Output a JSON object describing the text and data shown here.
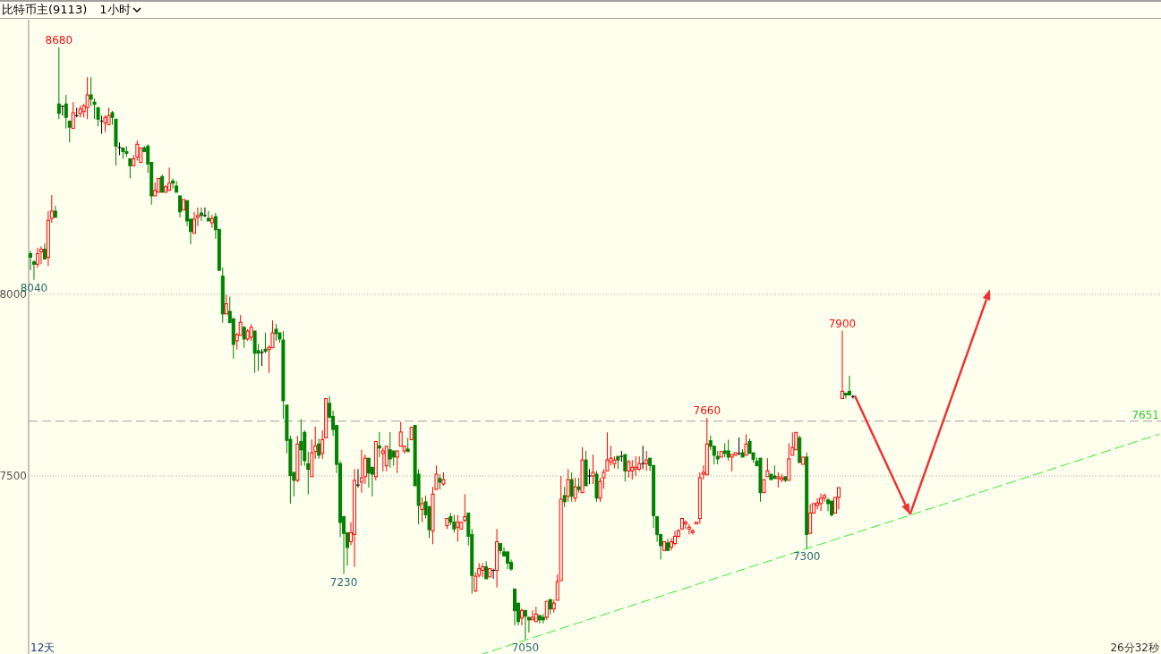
{
  "chart_data": {
    "type": "candlestick",
    "title": "比特币主(9113)",
    "subtitle": "1小时",
    "categories": [
      null,
      null,
      null,
      null,
      null,
      null,
      null,
      null,
      null,
      null,
      null,
      null,
      null,
      null,
      null,
      null,
      null,
      null,
      null,
      null,
      null,
      null,
      null,
      null,
      null,
      null,
      null,
      null,
      null,
      null,
      null,
      null,
      null,
      null,
      null,
      null,
      null,
      null,
      null,
      null,
      null,
      null,
      null,
      null,
      null,
      null,
      null,
      null,
      null,
      null,
      null,
      null,
      null,
      null,
      null,
      null,
      null,
      null,
      null,
      null,
      null,
      null,
      null,
      null,
      null,
      null,
      null,
      null,
      null,
      null,
      null,
      null,
      null,
      null,
      null,
      null,
      null,
      null,
      null,
      null,
      null,
      null,
      null,
      null,
      null,
      null,
      null,
      null,
      null,
      null,
      null,
      null,
      null,
      null,
      null,
      null,
      null,
      null,
      null,
      null,
      null,
      null,
      null,
      null,
      null,
      null,
      null,
      null,
      null,
      null,
      null,
      null,
      null,
      null,
      null,
      null,
      null,
      null,
      null,
      null,
      null,
      null,
      null,
      null,
      null,
      null,
      null,
      null,
      null,
      null,
      null,
      null,
      null,
      null,
      null,
      null,
      null,
      null,
      null,
      null,
      null,
      null,
      null,
      null,
      null,
      null,
      null,
      null,
      null,
      null,
      null,
      null,
      null,
      null,
      null,
      null,
      null,
      null,
      null,
      null,
      null,
      null,
      null,
      null,
      null,
      null,
      null,
      null,
      null,
      null,
      null,
      null,
      null,
      null,
      null,
      null,
      null,
      null,
      null,
      null,
      null,
      null,
      null,
      null,
      null,
      null,
      null,
      null,
      null,
      null,
      null,
      null,
      null,
      null,
      null,
      null,
      null,
      null,
      null,
      null,
      null,
      null,
      null,
      null,
      null,
      null,
      null,
      null,
      null,
      null,
      null,
      null,
      null,
      null,
      null,
      null,
      null,
      null,
      null,
      null,
      null,
      null,
      null,
      null,
      null,
      null,
      null,
      null,
      null,
      null,
      null,
      null,
      null,
      null,
      null,
      null,
      null,
      null,
      null,
      null,
      null,
      null,
      null,
      null,
      null,
      null,
      null,
      null,
      null,
      null,
      null,
      null,
      null,
      null,
      null,
      null,
      null,
      null,
      null,
      null,
      null,
      null,
      null,
      null,
      null,
      null,
      null,
      null,
      null,
      null,
      null,
      null,
      null,
      null,
      null,
      null,
      null,
      null,
      null,
      null,
      null,
      null,
      null,
      null,
      null,
      null,
      null,
      null,
      null,
      null,
      null,
      null,
      null,
      null,
      null,
      null,
      null,
      null,
      null,
      null,
      null,
      null,
      null,
      null,
      null,
      null,
      null,
      null,
      null,
      null,
      null,
      null,
      null,
      null,
      null,
      null,
      null,
      null
    ],
    "ohlc": [
      [
        8112,
        8119,
        8067,
        8102
      ],
      [
        8089,
        8094,
        8040,
        8083
      ],
      [
        8083,
        8128,
        8073,
        8112
      ],
      [
        8117,
        8132,
        8083,
        8124
      ],
      [
        8124,
        8140,
        8097,
        8097
      ],
      [
        8102,
        8229,
        8078,
        8204
      ],
      [
        8209,
        8273,
        8197,
        8229
      ],
      [
        8229,
        8244,
        8212,
        8212
      ],
      [
        8524,
        8680,
        8482,
        8498
      ],
      [
        8518,
        8518,
        8492,
        8518
      ],
      [
        8524,
        8549,
        8457,
        8487
      ],
      [
        8477,
        8477,
        8418,
        8460
      ],
      [
        8457,
        8529,
        8457,
        8500
      ],
      [
        8492,
        8514,
        8487,
        8492
      ],
      [
        8498,
        8519,
        8487,
        8510
      ],
      [
        8503,
        8524,
        8487,
        8519
      ],
      [
        8514,
        8598,
        8482,
        8549
      ],
      [
        8549,
        8598,
        8518,
        8537
      ],
      [
        8529,
        8539,
        8482,
        8523
      ],
      [
        8514,
        8514,
        8462,
        8482
      ],
      [
        8477,
        8492,
        8442,
        8477
      ],
      [
        8472,
        8493,
        8447,
        8487
      ],
      [
        8467,
        8514,
        8467,
        8492
      ],
      [
        8500,
        8505,
        8467,
        8487
      ],
      [
        8482,
        8482,
        8354,
        8408
      ],
      [
        8404,
        8418,
        8383,
        8404
      ],
      [
        8403,
        8403,
        8373,
        8393
      ],
      [
        8393,
        8408,
        8378,
        8388
      ],
      [
        8373,
        8373,
        8319,
        8354
      ],
      [
        8354,
        8383,
        8354,
        8373
      ],
      [
        8378,
        8423,
        8368,
        8413
      ],
      [
        8363,
        8403,
        8363,
        8403
      ],
      [
        8403,
        8408,
        8393,
        8393
      ],
      [
        8408,
        8413,
        8334,
        8359
      ],
      [
        8363,
        8363,
        8247,
        8271
      ],
      [
        8271,
        8308,
        8271,
        8286
      ],
      [
        8281,
        8319,
        8281,
        8319
      ],
      [
        8324,
        8330,
        8281,
        8281
      ],
      [
        8281,
        8301,
        8281,
        8296
      ],
      [
        8286,
        8349,
        8286,
        8306
      ],
      [
        8312,
        8319,
        8291,
        8306
      ],
      [
        8298,
        8312,
        8281,
        8281
      ],
      [
        8271,
        8271,
        8212,
        8227
      ],
      [
        8232,
        8261,
        8232,
        8261
      ],
      [
        8258,
        8258,
        8188,
        8202
      ],
      [
        8207,
        8207,
        8138,
        8173
      ],
      [
        8168,
        8227,
        8168,
        8207
      ],
      [
        8212,
        8239,
        8188,
        8217
      ],
      [
        8224,
        8239,
        8202,
        8217
      ],
      [
        8217,
        8239,
        8212,
        8217
      ],
      [
        8209,
        8229,
        8202,
        8202
      ],
      [
        8197,
        8219,
        8183,
        8209
      ],
      [
        8214,
        8224,
        8153,
        8178
      ],
      [
        8179,
        8179,
        8066,
        8066
      ],
      [
        8050,
        8074,
        7922,
        7946
      ],
      [
        7946,
        7999,
        7946,
        7974
      ],
      [
        7953,
        7994,
        7922,
        7922
      ],
      [
        7933,
        7933,
        7823,
        7862
      ],
      [
        7872,
        7894,
        7848,
        7889
      ],
      [
        7887,
        7943,
        7887,
        7923
      ],
      [
        7909,
        7913,
        7853,
        7877
      ],
      [
        7877,
        7904,
        7872,
        7899
      ],
      [
        7882,
        7918,
        7872,
        7909
      ],
      [
        7899,
        7899,
        7784,
        7838
      ],
      [
        7845,
        7864,
        7789,
        7838
      ],
      [
        7840,
        7849,
        7803,
        7840
      ],
      [
        7849,
        7894,
        7838,
        7843
      ],
      [
        7848,
        7859,
        7784,
        7854
      ],
      [
        7853,
        7928,
        7853,
        7894
      ],
      [
        7904,
        7918,
        7872,
        7892
      ],
      [
        7894,
        7894,
        7867,
        7877
      ],
      [
        7874,
        7899,
        7657,
        7707
      ],
      [
        7695,
        7695,
        7562,
        7598
      ],
      [
        7601,
        7611,
        7424,
        7501
      ],
      [
        7510,
        7510,
        7444,
        7488
      ],
      [
        7488,
        7611,
        7483,
        7588
      ],
      [
        7595,
        7656,
        7528,
        7572
      ],
      [
        7620,
        7626,
        7528,
        7542
      ],
      [
        7534,
        7567,
        7449,
        7518
      ],
      [
        7498,
        7601,
        7498,
        7564
      ],
      [
        7567,
        7636,
        7547,
        7583
      ],
      [
        7588,
        7603,
        7547,
        7557
      ],
      [
        7562,
        7626,
        7547,
        7600
      ],
      [
        7605,
        7713,
        7605,
        7713
      ],
      [
        7700,
        7720,
        7657,
        7662
      ],
      [
        7664,
        7680,
        7610,
        7628
      ],
      [
        7639,
        7639,
        7508,
        7532
      ],
      [
        7534,
        7541,
        7332,
        7372
      ],
      [
        7388,
        7388,
        7230,
        7342
      ],
      [
        7344,
        7344,
        7253,
        7303
      ],
      [
        7319,
        7373,
        7309,
        7344
      ],
      [
        7339,
        7519,
        7250,
        7488
      ],
      [
        7475,
        7519,
        7468,
        7475
      ],
      [
        7483,
        7572,
        7454,
        7495
      ],
      [
        7498,
        7559,
        7478,
        7549
      ],
      [
        7549,
        7549,
        7468,
        7508
      ],
      [
        7524,
        7524,
        7444,
        7505
      ],
      [
        7498,
        7595,
        7488,
        7595
      ],
      [
        7583,
        7621,
        7552,
        7577
      ],
      [
        7562,
        7578,
        7513,
        7569
      ],
      [
        7528,
        7582,
        7513,
        7582
      ],
      [
        7572,
        7621,
        7523,
        7547
      ],
      [
        7569,
        7569,
        7528,
        7552
      ],
      [
        7552,
        7569,
        7508,
        7569
      ],
      [
        7582,
        7649,
        7582,
        7621
      ],
      [
        7569,
        7582,
        7562,
        7582
      ],
      [
        7574,
        7605,
        7567,
        7567
      ],
      [
        7600,
        7634,
        7600,
        7634
      ],
      [
        7639,
        7639,
        7473,
        7473
      ],
      [
        7505,
        7519,
        7367,
        7419
      ],
      [
        7408,
        7441,
        7373,
        7424
      ],
      [
        7429,
        7446,
        7383,
        7393
      ],
      [
        7416,
        7416,
        7329,
        7352
      ],
      [
        7349,
        7470,
        7312,
        7450
      ],
      [
        7463,
        7529,
        7463,
        7505
      ],
      [
        7493,
        7505,
        7463,
        7483
      ],
      [
        7478,
        7510,
        7473,
        7490
      ],
      [
        7363,
        7383,
        7354,
        7383
      ],
      [
        7388,
        7398,
        7364,
        7373
      ],
      [
        7373,
        7393,
        7344,
        7354
      ],
      [
        7359,
        7393,
        7319,
        7373
      ],
      [
        7354,
        7373,
        7354,
        7373
      ],
      [
        7378,
        7450,
        7373,
        7388
      ],
      [
        7398,
        7398,
        7309,
        7334
      ],
      [
        7339,
        7354,
        7176,
        7226
      ],
      [
        7184,
        7235,
        7180,
        7224
      ],
      [
        7227,
        7260,
        7221,
        7245
      ],
      [
        7240,
        7260,
        7221,
        7250
      ],
      [
        7250,
        7265,
        7217,
        7217
      ],
      [
        7222,
        7245,
        7222,
        7245
      ],
      [
        7240,
        7245,
        7217,
        7240
      ],
      [
        7240,
        7354,
        7193,
        7319
      ],
      [
        7314,
        7314,
        7285,
        7295
      ],
      [
        7291,
        7304,
        7278,
        7280
      ],
      [
        7291,
        7291,
        7244,
        7260
      ],
      [
        7262,
        7270,
        7239,
        7244
      ],
      [
        7189,
        7189,
        7089,
        7129
      ],
      [
        7150,
        7150,
        7089,
        7099
      ],
      [
        7109,
        7135,
        7089,
        7130
      ],
      [
        7130,
        7130,
        7050,
        7114
      ],
      [
        7111,
        7111,
        7069,
        7104
      ],
      [
        7104,
        7130,
        7104,
        7111
      ],
      [
        7099,
        7140,
        7099,
        7120
      ],
      [
        7116,
        7116,
        7094,
        7104
      ],
      [
        7111,
        7120,
        7094,
        7104
      ],
      [
        7111,
        7155,
        7104,
        7155
      ],
      [
        7160,
        7160,
        7119,
        7134
      ],
      [
        7134,
        7160,
        7124,
        7150
      ],
      [
        7158,
        7229,
        7158,
        7209
      ],
      [
        7212,
        7500,
        7212,
        7436
      ],
      [
        7446,
        7470,
        7414,
        7429
      ],
      [
        7444,
        7519,
        7429,
        7490
      ],
      [
        7490,
        7510,
        7429,
        7444
      ],
      [
        7439,
        7495,
        7429,
        7470
      ],
      [
        7470,
        7495,
        7454,
        7463
      ],
      [
        7454,
        7579,
        7454,
        7544
      ],
      [
        7544,
        7569,
        7473,
        7473
      ],
      [
        7500,
        7519,
        7478,
        7500
      ],
      [
        7500,
        7559,
        7478,
        7510
      ],
      [
        7505,
        7514,
        7429,
        7439
      ],
      [
        7439,
        7495,
        7429,
        7485
      ],
      [
        7495,
        7519,
        7465,
        7510
      ],
      [
        7514,
        7620,
        7514,
        7544
      ],
      [
        7539,
        7583,
        7529,
        7549
      ],
      [
        7534,
        7554,
        7521,
        7544
      ],
      [
        7554,
        7554,
        7519,
        7544
      ],
      [
        7554,
        7569,
        7539,
        7554
      ],
      [
        7559,
        7559,
        7485,
        7514
      ],
      [
        7514,
        7544,
        7495,
        7539
      ],
      [
        7514,
        7544,
        7490,
        7524
      ],
      [
        7519,
        7554,
        7500,
        7524
      ],
      [
        7519,
        7554,
        7514,
        7534
      ],
      [
        7534,
        7583,
        7519,
        7534
      ],
      [
        7534,
        7569,
        7514,
        7544
      ],
      [
        7549,
        7549,
        7514,
        7529
      ],
      [
        7529,
        7529,
        7357,
        7391
      ],
      [
        7388,
        7388,
        7319,
        7339
      ],
      [
        7339,
        7339,
        7270,
        7308
      ],
      [
        7295,
        7319,
        7295,
        7319
      ],
      [
        7316,
        7327,
        7295,
        7295
      ],
      [
        7304,
        7329,
        7295,
        7319
      ],
      [
        7314,
        7349,
        7309,
        7334
      ],
      [
        7334,
        7354,
        7329,
        7349
      ],
      [
        7354,
        7385,
        7354,
        7383
      ],
      [
        7368,
        7378,
        7354,
        7373
      ],
      [
        7354,
        7368,
        7339,
        7359
      ],
      [
        7344,
        7354,
        7339,
        7349
      ],
      [
        7368,
        7373,
        7368,
        7373
      ],
      [
        7383,
        7510,
        7368,
        7495
      ],
      [
        7505,
        7529,
        7490,
        7510
      ],
      [
        7503,
        7660,
        7503,
        7588
      ],
      [
        7597,
        7611,
        7572,
        7582
      ],
      [
        7582,
        7582,
        7532,
        7557
      ],
      [
        7554,
        7569,
        7532,
        7547
      ],
      [
        7552,
        7567,
        7552,
        7567
      ],
      [
        7569,
        7590,
        7552,
        7562
      ],
      [
        7569,
        7600,
        7542,
        7552
      ],
      [
        7552,
        7559,
        7513,
        7559
      ],
      [
        7557,
        7564,
        7557,
        7564
      ],
      [
        7562,
        7606,
        7557,
        7562
      ],
      [
        7564,
        7574,
        7552,
        7552
      ],
      [
        7557,
        7615,
        7557,
        7588
      ],
      [
        7595,
        7603,
        7562,
        7562
      ],
      [
        7564,
        7564,
        7537,
        7546
      ],
      [
        7541,
        7551,
        7528,
        7528
      ],
      [
        7549,
        7549,
        7429,
        7454
      ],
      [
        7454,
        7490,
        7454,
        7490
      ],
      [
        7498,
        7549,
        7498,
        7514
      ],
      [
        7505,
        7505,
        7490,
        7490
      ],
      [
        7500,
        7529,
        7493,
        7493
      ],
      [
        7493,
        7510,
        7468,
        7498
      ],
      [
        7490,
        7505,
        7483,
        7495
      ],
      [
        7498,
        7498,
        7483,
        7488
      ],
      [
        7488,
        7590,
        7488,
        7547
      ],
      [
        7557,
        7620,
        7557,
        7578
      ],
      [
        7572,
        7620,
        7572,
        7620
      ],
      [
        7605,
        7611,
        7537,
        7537
      ],
      [
        7532,
        7552,
        7532,
        7552
      ],
      [
        7552,
        7565,
        7300,
        7339
      ],
      [
        7342,
        7423,
        7342,
        7398
      ],
      [
        7398,
        7424,
        7398,
        7424
      ],
      [
        7419,
        7439,
        7408,
        7426
      ],
      [
        7424,
        7452,
        7403,
        7439
      ],
      [
        7439,
        7452,
        7429,
        7446
      ],
      [
        7434,
        7439,
        7403,
        7424
      ],
      [
        7431,
        7431,
        7388,
        7393
      ],
      [
        7398,
        7441,
        7398,
        7441
      ],
      [
        7441,
        7468,
        7408,
        7468
      ],
      [
        7713,
        7900,
        7713,
        7733
      ],
      [
        7728,
        7728,
        7713,
        7723
      ],
      [
        7733,
        7776,
        7723,
        7723
      ],
      [
        7718,
        7723,
        7713,
        7718
      ],
      null,
      null,
      null,
      null,
      null,
      null,
      null,
      null,
      null,
      null,
      null,
      null,
      null,
      null,
      null,
      null,
      null,
      null,
      null,
      null,
      null,
      null,
      null,
      null,
      null,
      null,
      null,
      null,
      null,
      null,
      null,
      null,
      null,
      null,
      null,
      null,
      null,
      null,
      null,
      null,
      null,
      null,
      null,
      null,
      null,
      null,
      null,
      null,
      null,
      null,
      null,
      null,
      null,
      null,
      null,
      null,
      null,
      null,
      null,
      null,
      null,
      null,
      null,
      null,
      null,
      null,
      null,
      null,
      null,
      null,
      null,
      null,
      null,
      null,
      null,
      null,
      null,
      null,
      null,
      null,
      null,
      null,
      null,
      null,
      null,
      null
    ],
    "series": [
      {
        "type": "line",
        "values": [
          null,
          null,
          null,
          null,
          null,
          null,
          null,
          null,
          null,
          null,
          null,
          null,
          null,
          null,
          null,
          null,
          null,
          null,
          null,
          null,
          null,
          null,
          null,
          null,
          null,
          null,
          null,
          null,
          null,
          null,
          null,
          null,
          null,
          null,
          null,
          null,
          null,
          null,
          null,
          null,
          null,
          null,
          null,
          null,
          null,
          null,
          null,
          null,
          null,
          null,
          null,
          null,
          null,
          null,
          null,
          null,
          null,
          null,
          null,
          null,
          null,
          null,
          null,
          null,
          null,
          null,
          null,
          null,
          null,
          null,
          null,
          null,
          null,
          null,
          null,
          null,
          null,
          null,
          null,
          null,
          null,
          null,
          null,
          null,
          null,
          null,
          null,
          null,
          null,
          null,
          null,
          null,
          null,
          null,
          null,
          null,
          null,
          null,
          null,
          null,
          null,
          null,
          null,
          null,
          null,
          null,
          null,
          null,
          null,
          null,
          null,
          null,
          null,
          null,
          null,
          null,
          null,
          null,
          null,
          null,
          null,
          null,
          null,
          null,
          null,
          null,
          null,
          7010,
          null,
          null,
          null,
          null,
          null,
          null,
          null,
          null,
          null,
          null,
          null,
          null,
          null,
          null,
          null,
          null,
          null,
          null,
          null,
          null,
          null,
          null,
          null,
          null,
          null,
          null,
          null,
          null,
          null,
          null,
          null,
          null,
          null,
          null,
          null,
          null,
          null,
          null,
          null,
          null,
          null,
          null,
          null,
          null,
          null,
          null,
          null,
          null,
          null,
          null,
          null,
          null,
          null,
          null,
          null,
          null,
          null,
          null,
          null,
          null,
          null,
          null,
          null,
          null,
          null,
          null,
          null,
          null,
          null,
          null,
          null,
          null,
          null,
          null,
          null,
          null,
          null,
          null,
          null,
          null,
          null,
          null,
          null,
          null,
          null,
          null,
          null,
          null,
          null,
          null,
          null,
          null,
          null,
          null,
          null,
          null,
          null,
          null,
          null,
          null,
          null,
          null,
          null,
          null,
          null,
          null,
          null,
          null,
          null,
          null,
          null,
          null,
          null,
          null,
          null,
          null,
          null,
          null,
          null,
          null,
          null,
          null,
          null,
          null,
          null,
          null,
          null,
          null,
          null,
          null,
          null,
          null,
          null,
          null,
          null,
          null,
          null,
          null,
          null,
          null,
          null,
          null,
          null,
          null,
          null,
          null,
          null,
          null,
          null,
          null,
          null,
          null,
          null,
          null,
          null,
          null,
          null,
          null,
          null,
          null,
          null,
          null,
          null,
          null,
          null,
          null,
          null,
          null,
          null,
          null,
          null,
          null,
          null,
          null,
          null,
          null,
          null,
          null,
          null,
          null,
          null,
          null,
          null,
          null,
          null,
          null,
          null,
          null,
          null,
          7615
        ],
        "color": "#33ee33",
        "line_style": "dashed"
      }
    ],
    "ylim": [
      7010,
      8756
    ],
    "yticks": [
      7500,
      8000
    ],
    "grid": "y",
    "tick_labels": "y",
    "ref_lines": [
      {
        "axis": "y",
        "value": 7651,
        "label": "7651",
        "color": "#a0a0a0",
        "line_style": "dashed"
      }
    ],
    "annotations": [
      {
        "text": "8680",
        "y": 8680
      },
      {
        "text": "8040",
        "y": 8040
      },
      {
        "text": "7230",
        "y": 7230
      },
      {
        "text": "7050",
        "y": 7050
      },
      {
        "text": "7660",
        "y": 7660
      },
      {
        "text": "7300",
        "y": 7300
      },
      {
        "text": "7900",
        "y": 7900
      },
      "12天",
      "26分32秒"
    ]
  }
}
